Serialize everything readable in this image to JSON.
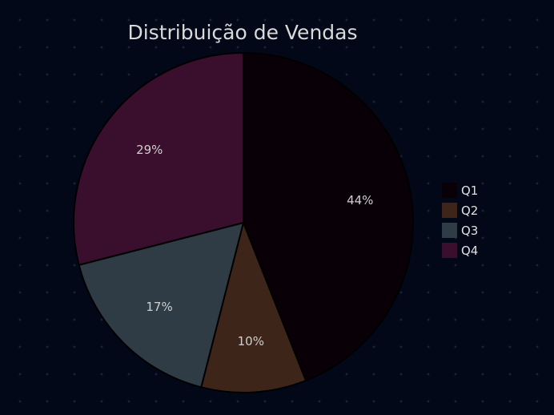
{
  "chart_data": {
    "type": "pie",
    "title": "Distribuição de Vendas",
    "categories": [
      "Q1",
      "Q2",
      "Q3",
      "Q4"
    ],
    "values": [
      44,
      10,
      17,
      29
    ],
    "labels": [
      "44%",
      "10%",
      "17%",
      "29%"
    ],
    "colors": [
      "#080006",
      "#3d2619",
      "#2f3c45",
      "#3a0e2d"
    ],
    "start_angle_deg": 90,
    "direction": "clockwise",
    "legend": {
      "placement": "right",
      "entries": [
        "Q1",
        "Q2",
        "Q3",
        "Q4"
      ]
    },
    "background": "#020818",
    "edge_color": "#000000"
  }
}
